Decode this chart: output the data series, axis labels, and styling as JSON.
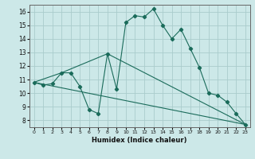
{
  "title": "",
  "xlabel": "Humidex (Indice chaleur)",
  "bg_color": "#cce8e8",
  "grid_color": "#aacccc",
  "line_color": "#1a6b5a",
  "xlim": [
    -0.5,
    23.5
  ],
  "ylim": [
    7.5,
    16.5
  ],
  "yticks": [
    8,
    9,
    10,
    11,
    12,
    13,
    14,
    15,
    16
  ],
  "xticks": [
    0,
    1,
    2,
    3,
    4,
    5,
    6,
    7,
    8,
    9,
    10,
    11,
    12,
    13,
    14,
    15,
    16,
    17,
    18,
    19,
    20,
    21,
    22,
    23
  ],
  "line1_x": [
    0,
    1,
    2,
    3,
    4,
    5,
    6,
    7,
    8,
    9,
    10,
    11,
    12,
    13,
    14,
    15,
    16,
    17,
    18,
    19,
    20,
    21,
    22,
    23
  ],
  "line1_y": [
    10.8,
    10.6,
    10.7,
    11.5,
    11.5,
    10.5,
    8.8,
    8.5,
    12.9,
    10.3,
    15.2,
    15.7,
    15.6,
    16.2,
    15.0,
    14.0,
    14.7,
    13.3,
    11.9,
    10.0,
    9.85,
    9.35,
    8.5,
    7.7
  ],
  "line2_x": [
    0,
    3,
    8,
    23
  ],
  "line2_y": [
    10.8,
    11.5,
    12.9,
    7.7
  ],
  "line3_x": [
    0,
    23
  ],
  "line3_y": [
    10.8,
    7.7
  ]
}
